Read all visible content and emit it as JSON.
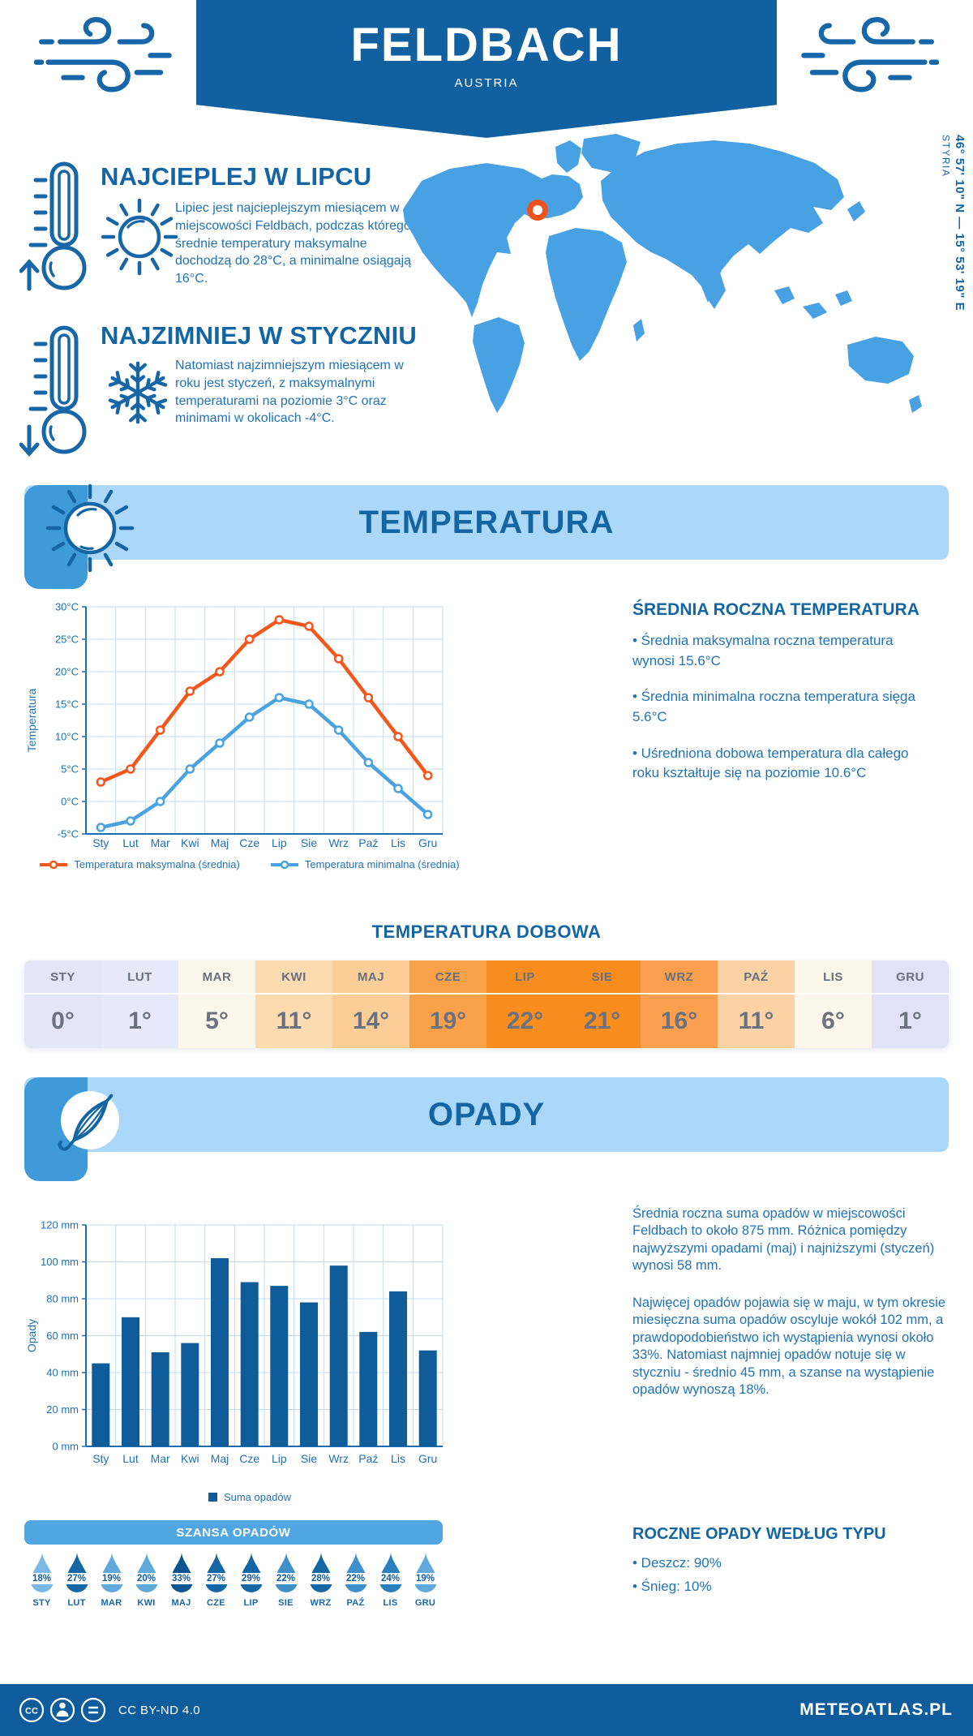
{
  "header": {
    "title": "FELDBACH",
    "subtitle": "AUSTRIA"
  },
  "map": {
    "coordinates": "46° 57' 10\" N — 15° 53' 19\" E",
    "region": "STYRIA"
  },
  "highlights": {
    "warmest": {
      "heading": "NAJCIEPLEJ W LIPCU",
      "text": "Lipiec jest najcieplejszym miesiącem w miejscowości Feldbach, podczas którego średnie temperatury maksymalne dochodzą do 28°C, a minimalne osiągają 16°C."
    },
    "coldest": {
      "heading": "NAJZIMNIEJ W STYCZNIU",
      "text": "Natomiast najzimniejszym miesiącem w roku jest styczeń, z maksymalnymi temperaturami na poziomie 3°C oraz minimami w okolicach -4°C."
    }
  },
  "temperature": {
    "band_title": "TEMPERATURA",
    "annual": {
      "heading": "ŚREDNIA ROCZNA TEMPERATURA",
      "bullets": [
        "• Średnia maksymalna roczna temperatura wynosi 15.6°C",
        "• Średnia minimalna roczna temperatura sięga 5.6°C",
        "• Uśredniona dobowa temperatura dla całego roku kształtuje się na poziomie 10.6°C"
      ]
    },
    "daily": {
      "title": "TEMPERATURA DOBOWA",
      "months": [
        "STY",
        "LUT",
        "MAR",
        "KWI",
        "MAJ",
        "CZE",
        "LIP",
        "SIE",
        "WRZ",
        "PAŹ",
        "LIS",
        "GRU"
      ],
      "values": [
        "0°",
        "1°",
        "5°",
        "11°",
        "14°",
        "19°",
        "22°",
        "21°",
        "16°",
        "11°",
        "6°",
        "1°"
      ],
      "cell_colors": [
        "#e3e5f9",
        "#e7e9fb",
        "#fdf6ea",
        "#fcdbb1",
        "#fbce97",
        "#f9a148",
        "#f78d1e",
        "#f78d1e",
        "#f99f4e",
        "#fbd2a4",
        "#fdf6ea",
        "#e0e3f8"
      ]
    }
  },
  "precipitation": {
    "band_title": "OPADY",
    "paragraphs": [
      "Średnia roczna suma opadów w miejscowości Feldbach to około 875 mm. Różnica pomiędzy najwyższymi opadami (maj) i najniższymi (styczeń) wynosi 58 mm.",
      "Najwięcej opadów pojawia się w maju, w tym okresie miesięczna suma opadów oscyluje wokół 102 mm, a prawdopodobieństwo ich wystąpienia wynosi około 33%. Natomiast najmniej opadów notuje się w styczniu - średnio 45 mm, a szanse na wystąpienie opadów wynoszą 18%."
    ],
    "chance": {
      "title": "SZANSA OPADÓW",
      "months": [
        "STY",
        "LUT",
        "MAR",
        "KWI",
        "MAJ",
        "CZE",
        "LIP",
        "SIE",
        "WRZ",
        "PAŹ",
        "LIS",
        "GRU"
      ],
      "values": [
        18,
        27,
        19,
        20,
        33,
        27,
        29,
        22,
        28,
        22,
        24,
        19
      ]
    },
    "by_type": {
      "heading": "ROCZNE OPADY WEDŁUG TYPU",
      "bullets": [
        "• Deszcz: 90%",
        "• Śnieg: 10%"
      ]
    }
  },
  "footer": {
    "license": "CC BY-ND 4.0",
    "site": "METEOATLAS.PL"
  },
  "chart_data": [
    {
      "type": "line",
      "categories": [
        "Sty",
        "Lut",
        "Mar",
        "Kwi",
        "Maj",
        "Cze",
        "Lip",
        "Sie",
        "Wrz",
        "Paź",
        "Lis",
        "Gru"
      ],
      "series": [
        {
          "name": "Temperatura maksymalna (średnia)",
          "color": "#f4571c",
          "values": [
            3,
            5,
            11,
            17,
            20,
            25,
            28,
            27,
            22,
            16,
            10,
            4
          ]
        },
        {
          "name": "Temperatura minimalna (średnia)",
          "color": "#4aa3e0",
          "values": [
            -4,
            -3,
            0,
            5,
            9,
            13,
            16,
            15,
            11,
            6,
            2,
            -2
          ]
        }
      ],
      "ylabel": "Temperatura",
      "ylim": [
        -5,
        30
      ],
      "ytick_step": 5,
      "ytick_suffix": "°C",
      "grid": true,
      "legend_position": "bottom"
    },
    {
      "type": "bar",
      "categories": [
        "Sty",
        "Lut",
        "Mar",
        "Kwi",
        "Maj",
        "Cze",
        "Lip",
        "Sie",
        "Wrz",
        "Paź",
        "Lis",
        "Gru"
      ],
      "series": [
        {
          "name": "Suma opadów",
          "color": "#0e5c99",
          "values": [
            45,
            70,
            51,
            56,
            102,
            89,
            87,
            78,
            98,
            62,
            84,
            52
          ]
        }
      ],
      "ylabel": "Opady",
      "ylim": [
        0,
        120
      ],
      "ytick_step": 20,
      "ytick_suffix": " mm",
      "grid": true,
      "legend_position": "bottom"
    }
  ]
}
